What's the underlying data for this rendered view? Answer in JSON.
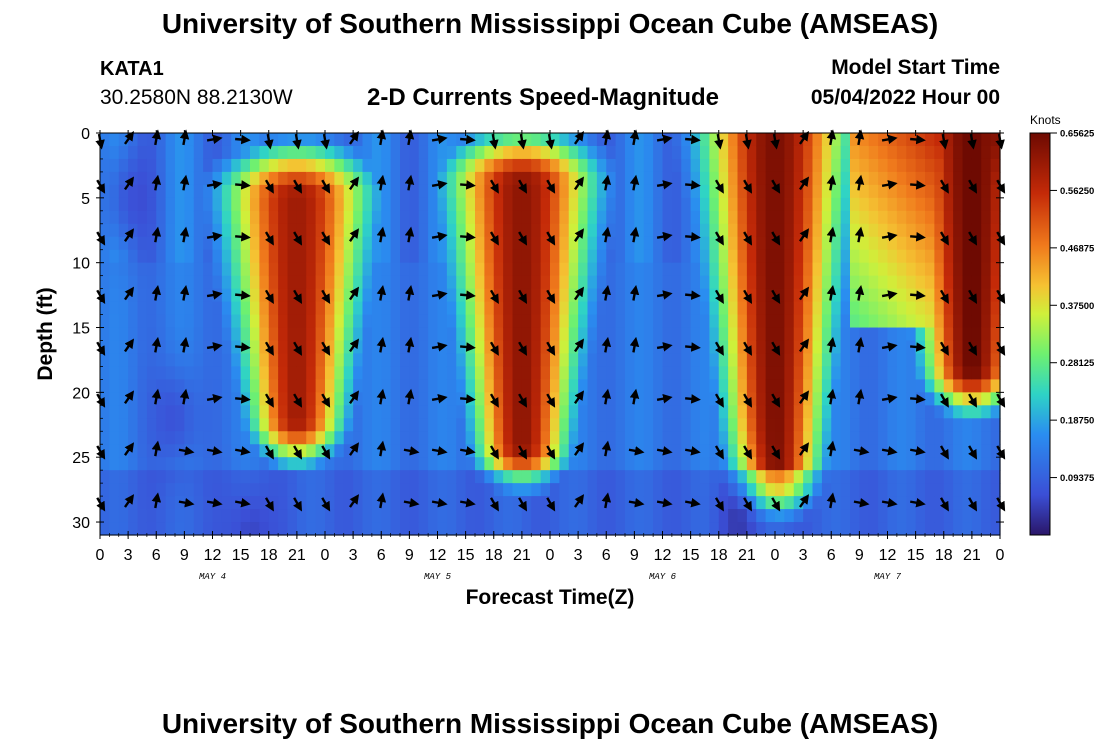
{
  "header": {
    "title": "University of Southern Mississippi Ocean Cube (AMSEAS)",
    "station_name": "KATA1",
    "station_coords": "30.2580N  88.2130W",
    "chart_title": "2-D Currents Speed-Magnitude",
    "model_label": "Model Start Time",
    "model_date": "05/04/2022 Hour 00"
  },
  "footer": {
    "title": "University of Southern Mississippi Ocean Cube (AMSEAS)"
  },
  "chart_data": {
    "type": "heatmap",
    "title": "2-D Currents Speed-Magnitude",
    "xlabel": "Forecast Time(Z)",
    "ylabel": "Depth (ft)",
    "x_range_hours": [
      0,
      96
    ],
    "ylim": [
      0,
      31
    ],
    "x_ticks": [
      "0",
      "3",
      "6",
      "9",
      "12",
      "15",
      "18",
      "21",
      "0",
      "3",
      "6",
      "9",
      "12",
      "15",
      "18",
      "21",
      "0",
      "3",
      "6",
      "9",
      "12",
      "15",
      "18",
      "21",
      "0",
      "3",
      "6",
      "9",
      "12",
      "15",
      "18",
      "21",
      "0"
    ],
    "y_ticks": [
      0,
      5,
      10,
      15,
      20,
      25,
      30
    ],
    "day_labels": [
      {
        "text": "MAY 4",
        "hour": 12
      },
      {
        "text": "MAY 5",
        "hour": 36
      },
      {
        "text": "MAY 6",
        "hour": 60
      },
      {
        "text": "MAY 7",
        "hour": 84
      }
    ],
    "colorbar": {
      "units": "Knots",
      "min": 0,
      "max": 0.65625,
      "ticks": [
        "0.65625",
        "0.56250",
        "0.46875",
        "0.37500",
        "0.28125",
        "0.18750",
        "0.09375"
      ],
      "tick_values": [
        0.65625,
        0.5625,
        0.46875,
        0.375,
        0.28125,
        0.1875,
        0.09375
      ]
    },
    "speed_peaks": [
      {
        "hour": 21,
        "top_depth": 5,
        "bottom_depth": 22,
        "peak_knots": 0.6
      },
      {
        "hour": 45,
        "top_depth": 4,
        "bottom_depth": 24,
        "peak_knots": 0.62
      },
      {
        "hour": 72,
        "top_depth": 0,
        "bottom_depth": 26,
        "peak_knots": 0.64
      },
      {
        "hour": 93,
        "top_depth": 0,
        "bottom_depth": 18,
        "peak_knots": 0.66
      }
    ],
    "vector_depths_ft": [
      0.5,
      4,
      8,
      12.5,
      16.5,
      20.5,
      24.5,
      28.5
    ],
    "vector_hours_step": 3
  }
}
